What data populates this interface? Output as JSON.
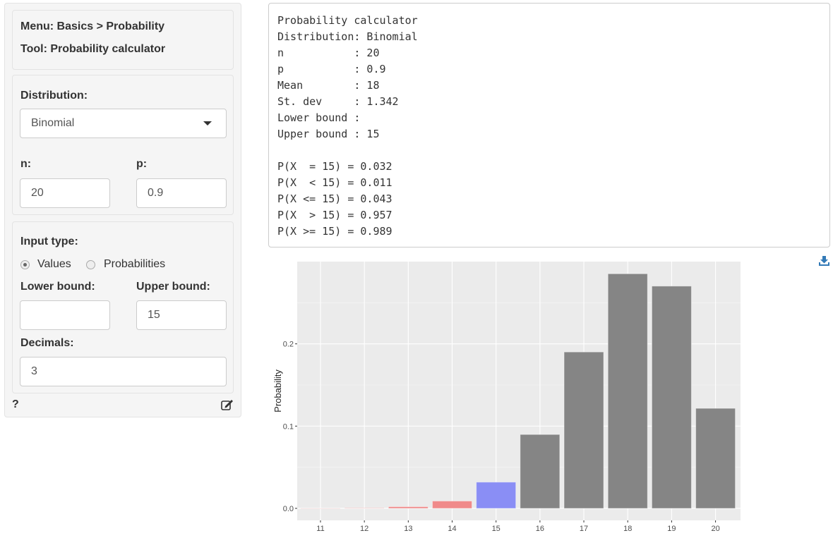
{
  "sidebar": {
    "menu": "Menu: Basics > Probability",
    "tool": "Tool: Probability calculator",
    "distribution_label": "Distribution:",
    "distribution_value": "Binomial",
    "n_label": "n:",
    "n_value": "20",
    "p_label": "p:",
    "p_value": "0.9",
    "input_type_label": "Input type:",
    "radio_values": "Values",
    "radio_probabilities": "Probabilities",
    "selected": "Values",
    "lower_label": "Lower bound:",
    "lower_value": "",
    "upper_label": "Upper bound:",
    "upper_value": "15",
    "decimals_label": "Decimals:",
    "decimals_value": "3",
    "help": "?"
  },
  "output": {
    "lines": [
      "Probability calculator",
      "Distribution: Binomial",
      "n           : 20",
      "p           : 0.9",
      "Mean        : 18",
      "St. dev     : 1.342",
      "Lower bound :",
      "Upper bound : 15",
      "",
      "P(X  = 15) = 0.032",
      "P(X  < 15) = 0.011",
      "P(X <= 15) = 0.043",
      "P(X  > 15) = 0.957",
      "P(X >= 15) = 0.989"
    ]
  },
  "chart_data": {
    "type": "bar",
    "ylabel": "Probability",
    "xlabel": "",
    "categories": [
      "11",
      "12",
      "13",
      "14",
      "15",
      "16",
      "17",
      "18",
      "19",
      "20"
    ],
    "values": [
      1e-05,
      0.0004,
      0.002,
      0.0089,
      0.0319,
      0.0898,
      0.1901,
      0.2852,
      0.2702,
      0.1216
    ],
    "bar_groups": [
      "below",
      "below",
      "below",
      "below",
      "equal",
      "above",
      "above",
      "above",
      "above",
      "above"
    ],
    "colors": {
      "below": "#f08a8a",
      "equal": "#8a8ef5",
      "above": "#858585",
      "panel": "#ebebeb"
    },
    "yticks": [
      "0.0",
      "0.1",
      "0.2"
    ],
    "ylim": [
      -0.0146,
      0.3
    ],
    "grid": true
  }
}
